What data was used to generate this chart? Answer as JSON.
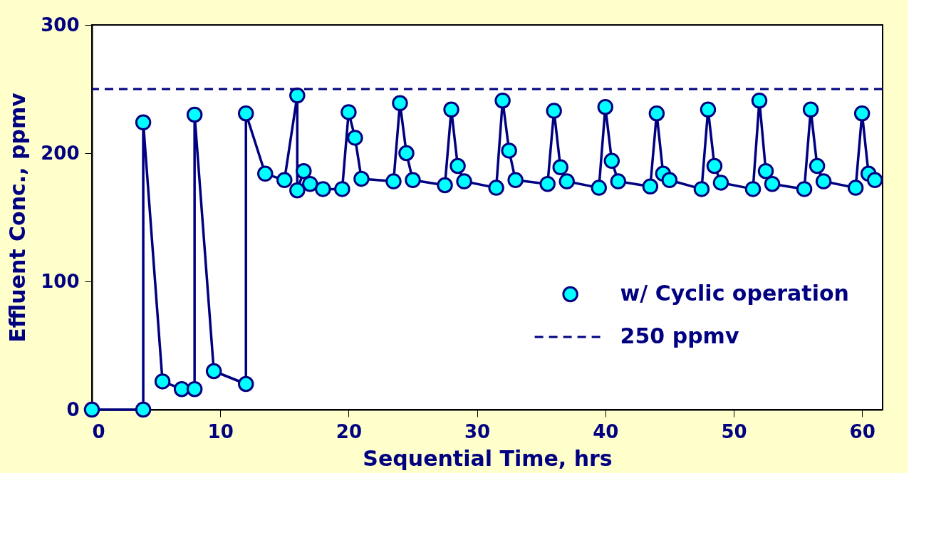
{
  "chart_data": {
    "type": "line",
    "xlabel": "Sequential Time, hrs",
    "ylabel": "Effluent Conc., ppmv",
    "xlim": [
      0,
      61.6
    ],
    "xticks": [
      0,
      10,
      20,
      30,
      40,
      50,
      60
    ],
    "ylim": [
      0,
      300
    ],
    "yticks": [
      0,
      100,
      200,
      300
    ],
    "grid": false,
    "legend": "right",
    "marker": "circle",
    "line_style": "solid",
    "series": [
      {
        "name": "w/ Cyclic operation",
        "color": "#000080",
        "x": [
          0,
          4,
          4,
          5.5,
          7,
          8,
          8,
          9.5,
          12,
          12,
          13.5,
          15,
          16,
          16,
          16.5,
          17,
          18,
          19.5,
          20,
          20.5,
          21,
          23.5,
          24,
          24.5,
          25,
          27.5,
          28,
          28.5,
          29,
          31.5,
          32,
          32.5,
          33,
          35.5,
          36,
          36.5,
          37,
          39.5,
          40,
          40.5,
          41,
          43.5,
          44,
          44.5,
          45,
          47.5,
          48,
          48.5,
          49,
          51.5,
          52,
          52.5,
          53,
          55.5,
          56,
          56.5,
          57,
          59.5,
          60,
          60.5,
          61
        ],
        "values": [
          0,
          0,
          224,
          22,
          16,
          16,
          230,
          30,
          20,
          231,
          184,
          179,
          245,
          171,
          186,
          176,
          172,
          172,
          232,
          212,
          180,
          178,
          239,
          200,
          179,
          175,
          234,
          190,
          178,
          173,
          241,
          202,
          179,
          176,
          233,
          189,
          178,
          173,
          236,
          194,
          178,
          174,
          231,
          184,
          179,
          172,
          234,
          190,
          177,
          172,
          241,
          186,
          176,
          172,
          234,
          190,
          178,
          173,
          231,
          184,
          179
        ]
      }
    ],
    "ref_lines": [
      {
        "axis": "y",
        "value": 250,
        "label": "250 ppmv",
        "color": "#000080",
        "line_style": "dashed"
      }
    ]
  }
}
